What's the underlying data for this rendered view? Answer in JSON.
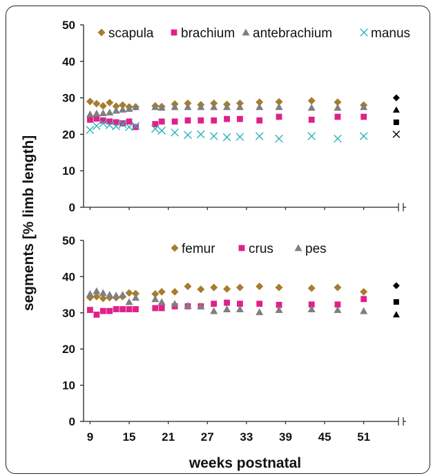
{
  "chart_data": [
    {
      "type": "scatter",
      "panel": "top",
      "ylabel": "segments [% limb length]",
      "xlabel": "weeks postnatal",
      "ylim": [
        0,
        50
      ],
      "yticks": [
        0,
        10,
        20,
        30,
        40,
        50
      ],
      "xticks": [
        9,
        15,
        21,
        27,
        33,
        39,
        45,
        51
      ],
      "axis_break": true,
      "legend_position": "top",
      "series": [
        {
          "name": "scapula",
          "marker": "diamond",
          "color": "#a67c2e",
          "x": [
            9,
            10,
            11,
            12,
            13,
            14,
            15,
            16,
            19,
            20,
            22,
            24,
            26,
            28,
            30,
            32,
            35,
            38,
            43,
            47,
            51
          ],
          "y": [
            29,
            28.4,
            27.8,
            28.7,
            27.7,
            28,
            27.5,
            27.5,
            27.8,
            27.6,
            28.3,
            28.5,
            28.1,
            28.5,
            28.2,
            28.5,
            28.8,
            28.9,
            29.2,
            28.8,
            28
          ]
        },
        {
          "name": "brachium",
          "marker": "square",
          "color": "#e0218a",
          "x": [
            9,
            10,
            11,
            12,
            13,
            14,
            15,
            16,
            19,
            20,
            22,
            24,
            26,
            28,
            30,
            32,
            35,
            38,
            43,
            47,
            51
          ],
          "y": [
            24,
            24.3,
            23.8,
            23.5,
            23.3,
            23,
            23.5,
            22,
            22.8,
            23.5,
            23.5,
            23.8,
            23.8,
            23.8,
            24.2,
            24.2,
            23.8,
            24.8,
            24,
            24.8,
            24.8
          ]
        },
        {
          "name": "antebrachium",
          "marker": "triangle",
          "color": "#7f7f7f",
          "x": [
            9,
            10,
            11,
            12,
            13,
            14,
            15,
            16,
            19,
            20,
            22,
            24,
            26,
            28,
            30,
            32,
            35,
            38,
            43,
            47,
            51
          ],
          "y": [
            25.5,
            25.7,
            25.8,
            26,
            26.5,
            26.8,
            27,
            27.5,
            27.5,
            27.3,
            27.5,
            27.5,
            27.5,
            27.5,
            27.5,
            27.5,
            27.5,
            27.5,
            27.3,
            27.3,
            27.5
          ]
        },
        {
          "name": "manus",
          "marker": "x",
          "color": "#2ab3b8",
          "x": [
            9,
            10,
            11,
            12,
            13,
            14,
            15,
            16,
            19,
            20,
            22,
            24,
            26,
            28,
            30,
            32,
            35,
            38,
            43,
            47,
            51
          ],
          "y": [
            21.2,
            22.3,
            23,
            22.5,
            22.2,
            22.8,
            22,
            22.3,
            21.5,
            21,
            20.5,
            19.8,
            20,
            19.5,
            19.2,
            19.3,
            19.5,
            18.8,
            19.5,
            18.8,
            19.5
          ]
        },
        {
          "name": "",
          "marker": "diamond",
          "color": "#000000",
          "x": [
            56
          ],
          "y": [
            30
          ]
        },
        {
          "name": "",
          "marker": "triangle",
          "color": "#000000",
          "x": [
            56
          ],
          "y": [
            26.7
          ]
        },
        {
          "name": "",
          "marker": "square",
          "color": "#000000",
          "x": [
            56
          ],
          "y": [
            23.3
          ]
        },
        {
          "name": "",
          "marker": "x",
          "color": "#000000",
          "x": [
            56
          ],
          "y": [
            20
          ]
        }
      ]
    },
    {
      "type": "scatter",
      "panel": "bottom",
      "ylabel": "segments [% limb length]",
      "xlabel": "weeks postnatal",
      "ylim": [
        0,
        50
      ],
      "yticks": [
        0,
        10,
        20,
        30,
        40,
        50
      ],
      "xticks": [
        9,
        15,
        21,
        27,
        33,
        39,
        45,
        51
      ],
      "axis_break": true,
      "legend_position": "top-center",
      "series": [
        {
          "name": "femur",
          "marker": "diamond",
          "color": "#a67c2e",
          "x": [
            9,
            10,
            11,
            12,
            13,
            14,
            15,
            16,
            19,
            20,
            22,
            24,
            26,
            28,
            30,
            32,
            35,
            38,
            43,
            47,
            51
          ],
          "y": [
            34.2,
            34.5,
            34,
            34.2,
            34.2,
            34.5,
            35.5,
            35.3,
            35.2,
            35.8,
            35.8,
            37.3,
            36.5,
            37,
            36.6,
            37,
            37.3,
            37,
            36.8,
            37,
            35.8
          ]
        },
        {
          "name": "crus",
          "marker": "square",
          "color": "#e0218a",
          "x": [
            9,
            10,
            11,
            12,
            13,
            14,
            15,
            16,
            19,
            20,
            22,
            24,
            26,
            28,
            30,
            32,
            35,
            38,
            43,
            47,
            51
          ],
          "y": [
            30.8,
            29.5,
            30.5,
            30.5,
            31,
            31,
            31,
            31,
            31.3,
            31.3,
            31.8,
            31.8,
            31.8,
            32.5,
            32.8,
            32.5,
            32.5,
            32.2,
            32.3,
            32.3,
            33.8
          ]
        },
        {
          "name": "pes",
          "marker": "triangle",
          "color": "#7f7f7f",
          "x": [
            9,
            10,
            11,
            12,
            13,
            14,
            15,
            16,
            19,
            20,
            22,
            24,
            26,
            28,
            30,
            32,
            35,
            38,
            43,
            47,
            51
          ],
          "y": [
            35.2,
            36,
            35.5,
            35,
            34.8,
            35,
            33,
            34.2,
            33.8,
            33,
            32.5,
            32,
            31.8,
            30.5,
            31,
            31,
            30.2,
            30.8,
            31,
            30.8,
            30.5
          ]
        },
        {
          "name": "",
          "marker": "diamond",
          "color": "#000000",
          "x": [
            56
          ],
          "y": [
            37.5
          ]
        },
        {
          "name": "",
          "marker": "square",
          "color": "#000000",
          "x": [
            56
          ],
          "y": [
            33
          ]
        },
        {
          "name": "",
          "marker": "triangle",
          "color": "#000000",
          "x": [
            56
          ],
          "y": [
            29.5
          ]
        }
      ]
    }
  ]
}
